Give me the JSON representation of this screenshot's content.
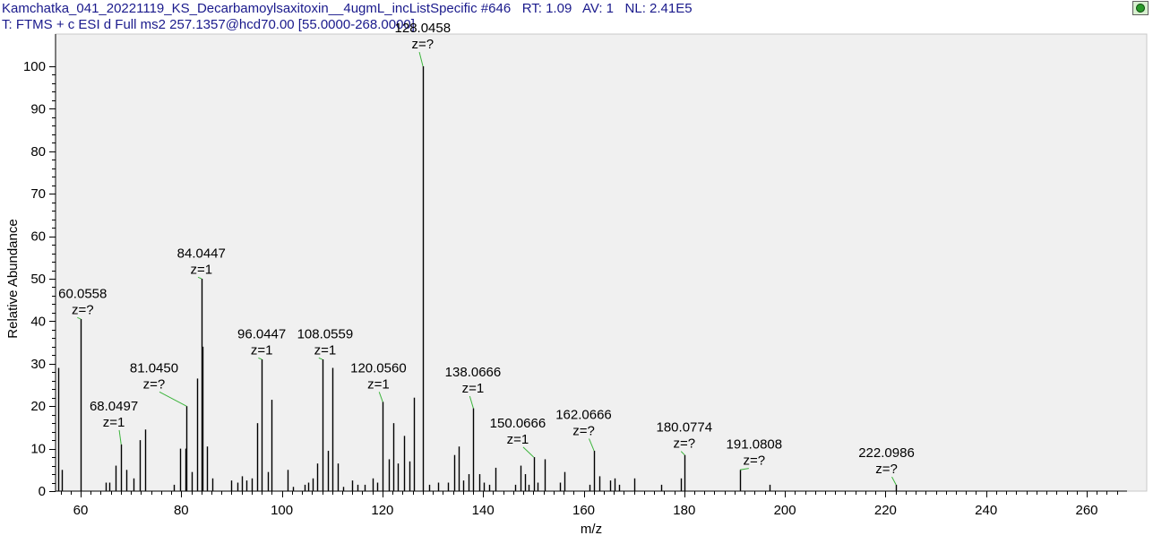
{
  "header": {
    "filename": "Kamchatka_041_20221119_KS_Decarbamoylsaxitoxin__4ugmL_incListSpecific",
    "scan_label": "#646",
    "rt_label": "RT:",
    "rt_value": "1.09",
    "av_label": "AV:",
    "av_value": "1",
    "nl_label": "NL:",
    "nl_value": "2.41E5",
    "filter_prefix": "T:",
    "filter": "FTMS + c ESI d Full ms2 257.1357@hcd70.00 [55.0000-268.0000]"
  },
  "icons": {
    "corner": "settings-ball-icon"
  },
  "colors": {
    "header_text": "#1a1a8c",
    "stick": "#000000",
    "label_marker": "#3cb43c",
    "plot_bg": "#f0f0f0"
  },
  "chart_data": {
    "type": "bar",
    "title": "",
    "xlabel": "m/z",
    "ylabel": "Relative Abundance",
    "xlim": [
      55,
      268
    ],
    "ylim": [
      0,
      100
    ],
    "xticks": [
      60,
      80,
      100,
      120,
      140,
      160,
      180,
      200,
      220,
      240,
      260
    ],
    "yticks": [
      0,
      10,
      20,
      30,
      40,
      50,
      60,
      70,
      80,
      90,
      100
    ],
    "peaks": [
      [
        55.5,
        29
      ],
      [
        56.3,
        5
      ],
      [
        60.0558,
        40.5
      ],
      [
        64.9,
        2
      ],
      [
        65.7,
        2
      ],
      [
        66.9,
        6
      ],
      [
        68.0497,
        11
      ],
      [
        69,
        5
      ],
      [
        70.5,
        3
      ],
      [
        71.7,
        12
      ],
      [
        72.8,
        14.5
      ],
      [
        78.6,
        1.5
      ],
      [
        79.8,
        10
      ],
      [
        80.8,
        10
      ],
      [
        81.045,
        20
      ],
      [
        82,
        4.5
      ],
      [
        83.1,
        26.5
      ],
      [
        84.0447,
        50
      ],
      [
        84.3,
        34
      ],
      [
        85.1,
        10.5
      ],
      [
        86.1,
        3
      ],
      [
        89.9,
        2.5
      ],
      [
        91.2,
        2
      ],
      [
        92,
        3.5
      ],
      [
        93,
        2.5
      ],
      [
        94,
        3
      ],
      [
        95,
        16
      ],
      [
        96.0447,
        31
      ],
      [
        97.2,
        4.5
      ],
      [
        98,
        21.5
      ],
      [
        101.2,
        5
      ],
      [
        102.2,
        1
      ],
      [
        104.5,
        1.5
      ],
      [
        105.3,
        2
      ],
      [
        106.2,
        3
      ],
      [
        107,
        6.5
      ],
      [
        108.0559,
        31
      ],
      [
        109.2,
        9.5
      ],
      [
        110.1,
        29
      ],
      [
        111.2,
        6.5
      ],
      [
        112.2,
        1
      ],
      [
        113.9,
        2.5
      ],
      [
        115,
        1.5
      ],
      [
        116.4,
        1.5
      ],
      [
        118.1,
        3
      ],
      [
        119,
        2
      ],
      [
        120.056,
        21
      ],
      [
        121.2,
        7.5
      ],
      [
        122.1,
        16
      ],
      [
        123.1,
        6.5
      ],
      [
        124.3,
        13
      ],
      [
        125.4,
        7
      ],
      [
        126.3,
        22
      ],
      [
        128.0458,
        100
      ],
      [
        129.3,
        1.5
      ],
      [
        131,
        2
      ],
      [
        133,
        2
      ],
      [
        134.3,
        8.5
      ],
      [
        135.2,
        10.5
      ],
      [
        136,
        2.5
      ],
      [
        137.2,
        4
      ],
      [
        138.0666,
        19.5
      ],
      [
        139.3,
        4
      ],
      [
        140.2,
        2
      ],
      [
        141.3,
        1.5
      ],
      [
        142.4,
        5.5
      ],
      [
        146.4,
        1.5
      ],
      [
        147.5,
        6
      ],
      [
        148.3,
        4
      ],
      [
        149,
        1.5
      ],
      [
        150.0666,
        8
      ],
      [
        150.8,
        2
      ],
      [
        152.2,
        7.5
      ],
      [
        155.3,
        2
      ],
      [
        156.2,
        4.5
      ],
      [
        161.2,
        1.5
      ],
      [
        162.0666,
        9.5
      ],
      [
        163.1,
        3.5
      ],
      [
        165.2,
        2.5
      ],
      [
        166.1,
        3
      ],
      [
        167.1,
        1.5
      ],
      [
        170.1,
        3
      ],
      [
        175.4,
        1.5
      ],
      [
        179.3,
        3
      ],
      [
        180.0774,
        8.5
      ],
      [
        191.0808,
        5
      ],
      [
        196.9,
        1.5
      ],
      [
        222.0986,
        1.5
      ]
    ],
    "annotations": [
      {
        "mz": 60.0558,
        "intensity": 40.5,
        "label": "60.0558",
        "charge": "z=?",
        "label_mz": 60.4,
        "label_top": 45.5
      },
      {
        "mz": 68.0497,
        "intensity": 11,
        "label": "68.0497",
        "charge": "z=1",
        "label_mz": 66.6,
        "label_top": 19
      },
      {
        "mz": 81.045,
        "intensity": 20,
        "label": "81.0450",
        "charge": "z=?",
        "label_mz": 74.6,
        "label_top": 28
      },
      {
        "mz": 84.0447,
        "intensity": 50,
        "label": "84.0447",
        "charge": "z=1",
        "label_mz": 84.0,
        "label_top": 55
      },
      {
        "mz": 96.0447,
        "intensity": 31,
        "label": "96.0447",
        "charge": "z=1",
        "label_mz": 96.0,
        "label_top": 36
      },
      {
        "mz": 108.0559,
        "intensity": 31,
        "label": "108.0559",
        "charge": "z=1",
        "label_mz": 108.6,
        "label_top": 36
      },
      {
        "mz": 120.056,
        "intensity": 21,
        "label": "120.0560",
        "charge": "z=1",
        "label_mz": 119.2,
        "label_top": 28
      },
      {
        "mz": 128.0458,
        "intensity": 100,
        "label": "128.0458",
        "charge": "z=?",
        "label_mz": 128.0,
        "label_top": 108
      },
      {
        "mz": 138.0666,
        "intensity": 19.5,
        "label": "138.0666",
        "charge": "z=1",
        "label_mz": 138.0,
        "label_top": 27
      },
      {
        "mz": 150.0666,
        "intensity": 8,
        "label": "150.0666",
        "charge": "z=1",
        "label_mz": 146.9,
        "label_top": 15
      },
      {
        "mz": 162.0666,
        "intensity": 9.5,
        "label": "162.0666",
        "charge": "z=?",
        "label_mz": 160.0,
        "label_top": 17
      },
      {
        "mz": 180.0774,
        "intensity": 8.5,
        "label": "180.0774",
        "charge": "z=?",
        "label_mz": 180.0,
        "label_top": 14
      },
      {
        "mz": 191.0808,
        "intensity": 5,
        "label": "191.0808",
        "charge": "z=?",
        "label_mz": 193.9,
        "label_top": 10
      },
      {
        "mz": 222.0986,
        "intensity": 1.5,
        "label": "222.0986",
        "charge": "z=?",
        "label_mz": 220.2,
        "label_top": 8
      }
    ]
  }
}
